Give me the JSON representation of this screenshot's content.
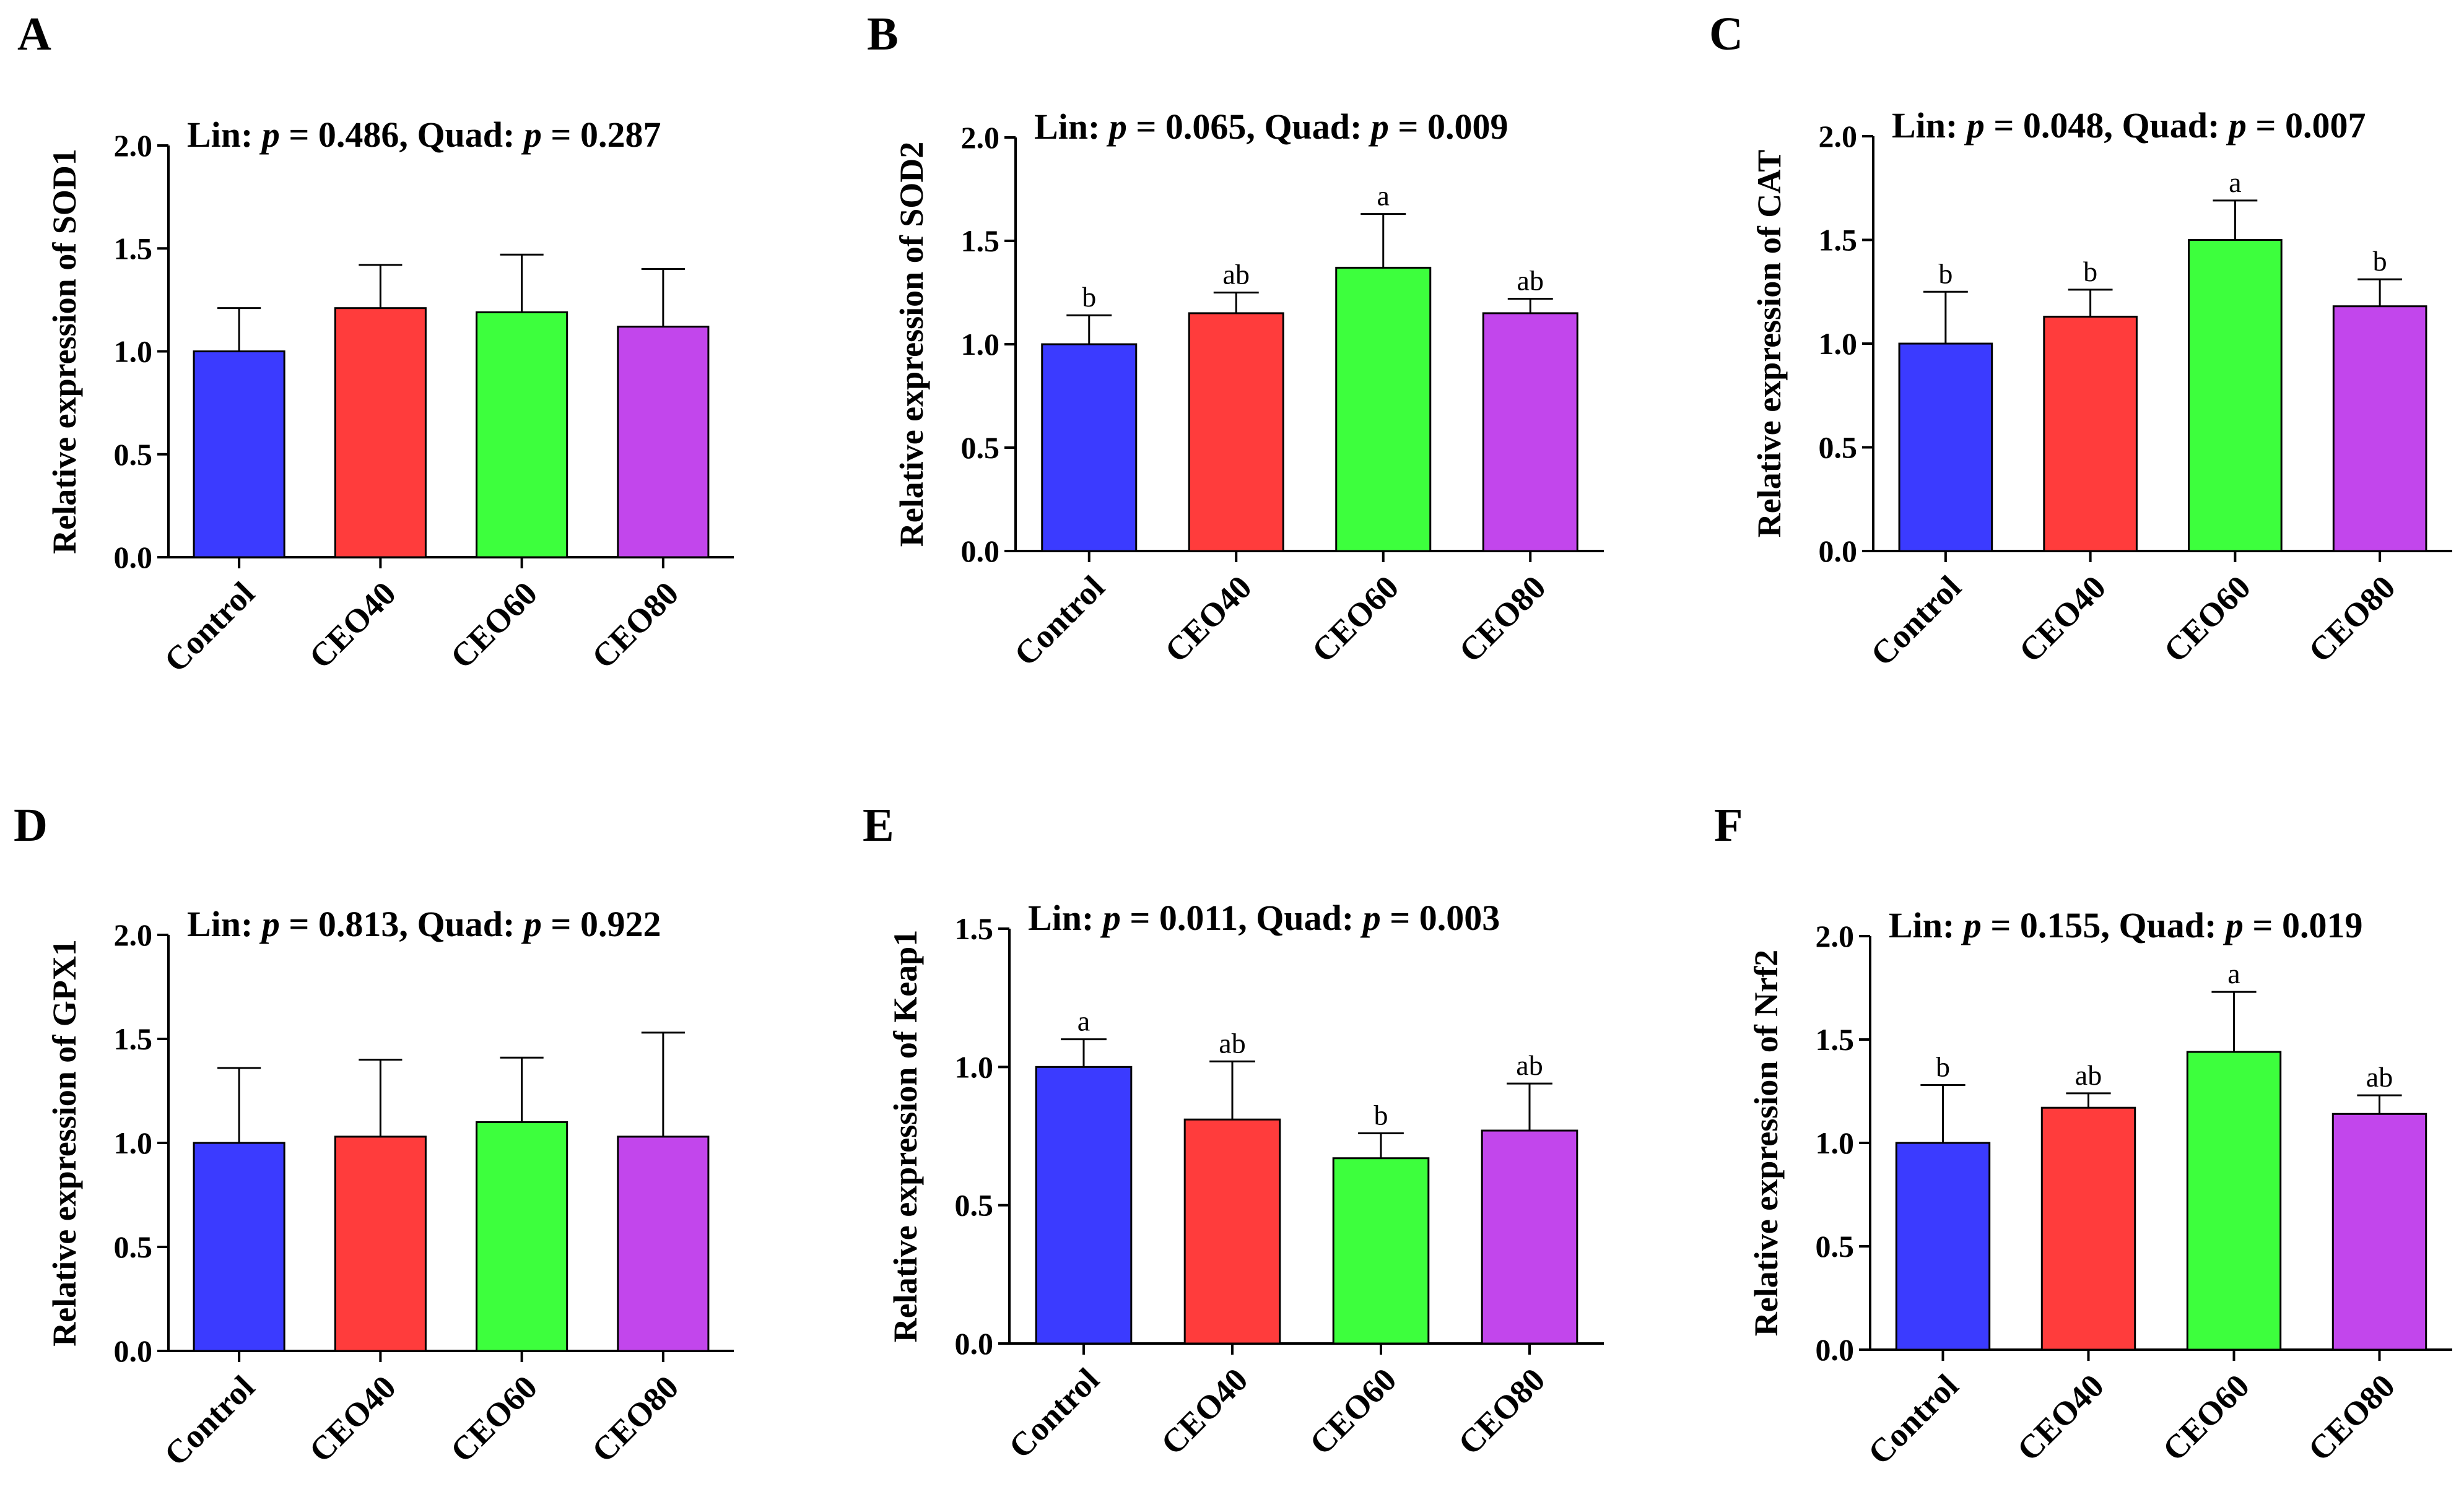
{
  "colors": {
    "Control": "#3b3bff",
    "CEO40": "#ff3c3c",
    "CEO60": "#3dff3d",
    "CEO80": "#c246ec"
  },
  "chart_data": [
    {
      "panel": "A",
      "type": "bar",
      "lin_label": "Lin:",
      "lin_p": "= 0.486,",
      "quad_label": "Quad:",
      "quad_p": "= 0.287",
      "p_symbol": "p",
      "ylabel": "Relative expression of SOD1",
      "ylim": [
        0,
        2.0
      ],
      "yticks": [
        "0.0",
        "0.5",
        "1.0",
        "1.5",
        "2.0"
      ],
      "categories": [
        "Control",
        "CEO40",
        "CEO60",
        "CEO80"
      ],
      "values": [
        1.0,
        1.21,
        1.19,
        1.12
      ],
      "errors": [
        0.21,
        0.21,
        0.28,
        0.28
      ],
      "letters": [
        "",
        "",
        "",
        ""
      ]
    },
    {
      "panel": "B",
      "type": "bar",
      "lin_label": "Lin:",
      "lin_p": "= 0.065,",
      "quad_label": "Quad:",
      "quad_p": "= 0.009",
      "p_symbol": "p",
      "ylabel": "Relative expression of SOD2",
      "ylim": [
        0,
        2.0
      ],
      "yticks": [
        "0.0",
        "0.5",
        "1.0",
        "1.5",
        "2.0"
      ],
      "categories": [
        "Control",
        "CEO40",
        "CEO60",
        "CEO80"
      ],
      "values": [
        1.0,
        1.15,
        1.37,
        1.15
      ],
      "errors": [
        0.14,
        0.1,
        0.26,
        0.07
      ],
      "letters": [
        "b",
        "ab",
        "a",
        "ab"
      ]
    },
    {
      "panel": "C",
      "type": "bar",
      "lin_label": "Lin:",
      "lin_p": "= 0.048,",
      "quad_label": "Quad:",
      "quad_p": "= 0.007",
      "p_symbol": "p",
      "ylabel": "Relative expression of CAT",
      "ylim": [
        0,
        2.0
      ],
      "yticks": [
        "0.0",
        "0.5",
        "1.0",
        "1.5",
        "2.0"
      ],
      "categories": [
        "Control",
        "CEO40",
        "CEO60",
        "CEO80"
      ],
      "values": [
        1.0,
        1.13,
        1.5,
        1.18
      ],
      "errors": [
        0.25,
        0.13,
        0.19,
        0.13
      ],
      "letters": [
        "b",
        "b",
        "a",
        "b"
      ]
    },
    {
      "panel": "D",
      "type": "bar",
      "lin_label": "Lin:",
      "lin_p": "= 0.813,",
      "quad_label": "Quad:",
      "quad_p": "= 0.922",
      "p_symbol": "p",
      "ylabel": "Relative expression of GPX1",
      "ylim": [
        0,
        2.0
      ],
      "yticks": [
        "0.0",
        "0.5",
        "1.0",
        "1.5",
        "2.0"
      ],
      "categories": [
        "Control",
        "CEO40",
        "CEO60",
        "CEO80"
      ],
      "values": [
        1.0,
        1.03,
        1.1,
        1.03
      ],
      "errors": [
        0.36,
        0.37,
        0.31,
        0.5
      ],
      "letters": [
        "",
        "",
        "",
        ""
      ]
    },
    {
      "panel": "E",
      "type": "bar",
      "lin_label": "Lin:",
      "lin_p": "= 0.011,",
      "quad_label": "Quad:",
      "quad_p": "= 0.003",
      "p_symbol": "p",
      "ylabel": "Relative expression of Keap1",
      "ylim": [
        0,
        1.5
      ],
      "yticks": [
        "0.0",
        "0.5",
        "1.0",
        "1.5"
      ],
      "categories": [
        "Control",
        "CEO40",
        "CEO60",
        "CEO80"
      ],
      "values": [
        1.0,
        0.81,
        0.67,
        0.77
      ],
      "errors": [
        0.1,
        0.21,
        0.09,
        0.17
      ],
      "letters": [
        "a",
        "ab",
        "b",
        "ab"
      ]
    },
    {
      "panel": "F",
      "type": "bar",
      "lin_label": "Lin:",
      "lin_p": "= 0.155,",
      "quad_label": "Quad:",
      "quad_p": "= 0.019",
      "p_symbol": "p",
      "ylabel": "Relative expression of Nrf2",
      "ylim": [
        0,
        2.0
      ],
      "yticks": [
        "0.0",
        "0.5",
        "1.0",
        "1.5",
        "2.0"
      ],
      "categories": [
        "Control",
        "CEO40",
        "CEO60",
        "CEO80"
      ],
      "values": [
        1.0,
        1.17,
        1.44,
        1.14
      ],
      "errors": [
        0.28,
        0.07,
        0.29,
        0.09
      ],
      "letters": [
        "b",
        "ab",
        "a",
        "ab"
      ]
    }
  ]
}
